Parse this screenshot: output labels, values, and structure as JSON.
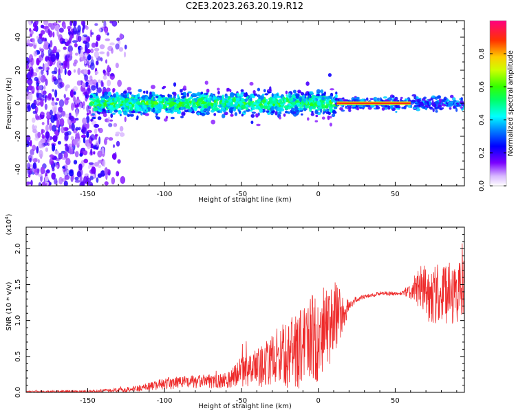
{
  "figure": {
    "title": "C2E3.2023.263.20.19.R12"
  },
  "colors": {
    "snr_line": "#ee2a2a",
    "axis": "#000000"
  },
  "chart_data": [
    {
      "type": "heatmap",
      "xlabel": "Height of straight line (km)",
      "ylabel": "Frequency (Hz)",
      "xlim": [
        -190,
        95
      ],
      "ylim": [
        -50,
        50
      ],
      "xticks": [
        -150,
        -100,
        -50,
        0,
        50
      ],
      "yticks": [
        -40,
        -20,
        0,
        20,
        40
      ],
      "colorbar": {
        "label": "Normalized spectral amplitude",
        "range": [
          0,
          1
        ],
        "ticks": [
          "0.0",
          "0.2",
          "0.4",
          "0.6",
          "0.8"
        ],
        "colormap": "rainbow (white-violet-blue-cyan-green-yellow-red-pink)"
      },
      "description_segments": [
        {
          "x_range": [
            -190,
            -148
          ],
          "pattern": "scattered broadband noise across full frequency range",
          "amplitude": 0.2
        },
        {
          "x_range": [
            -148,
            12
          ],
          "pattern": "band centered near 0 Hz, about 5-10 Hz wide",
          "amplitude": 0.4
        },
        {
          "x_range": [
            12,
            95
          ],
          "pattern": "narrow line at 0 Hz",
          "amplitude": 0.9
        }
      ]
    },
    {
      "type": "line",
      "xlabel": "Height of straight line (km)",
      "ylabel": "SNR (10 * v/v)",
      "multiplier": "(x10^4)",
      "xlim": [
        -190,
        95
      ],
      "ylim": [
        0,
        2.3
      ],
      "xticks": [
        -150,
        -100,
        -50,
        0,
        50
      ],
      "yticks": [
        "0.0",
        "0.5",
        "1.0",
        "1.5",
        "2.0"
      ],
      "series": [
        {
          "envelope_x": [
            -190,
            -150,
            -130,
            -115,
            -100,
            -90,
            -70,
            -60,
            -52,
            -45,
            -38,
            -30,
            -25,
            -20,
            -12,
            -8,
            0,
            5,
            10,
            15,
            20,
            25,
            30,
            40,
            50,
            55,
            60,
            65,
            70,
            80,
            90,
            95
          ],
          "envelope_mean": [
            0.01,
            0.015,
            0.03,
            0.06,
            0.12,
            0.14,
            0.15,
            0.16,
            0.28,
            0.3,
            0.35,
            0.45,
            0.55,
            0.5,
            0.6,
            0.75,
            0.75,
            0.9,
            1.0,
            1.1,
            1.2,
            1.3,
            1.33,
            1.38,
            1.37,
            1.38,
            1.4,
            1.45,
            1.4,
            1.35,
            1.4,
            1.4
          ],
          "envelope_spread": [
            0.01,
            0.015,
            0.03,
            0.05,
            0.08,
            0.09,
            0.1,
            0.1,
            0.2,
            0.22,
            0.28,
            0.35,
            0.4,
            0.45,
            0.55,
            0.65,
            0.65,
            0.6,
            0.55,
            0.35,
            0.1,
            0.04,
            0.03,
            0.03,
            0.03,
            0.04,
            0.1,
            0.3,
            0.4,
            0.45,
            0.45,
            0.45
          ]
        }
      ]
    }
  ]
}
